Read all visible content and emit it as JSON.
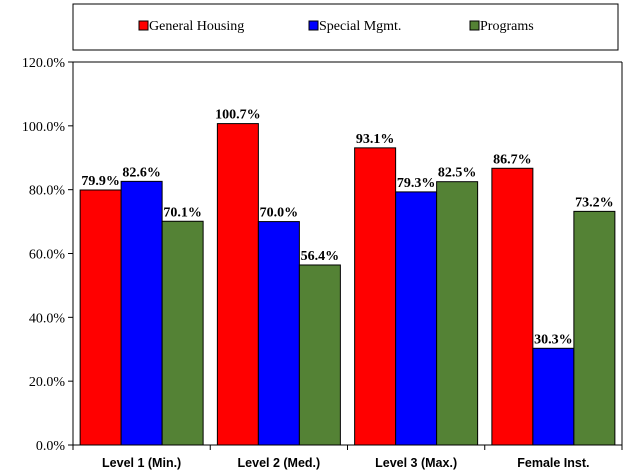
{
  "chart_data": {
    "type": "bar",
    "title": "",
    "xlabel": "",
    "ylabel": "",
    "categories": [
      "Level 1 (Min.)",
      "Level 2 (Med.)",
      "Level 3 (Max.)",
      "Female Inst."
    ],
    "series": [
      {
        "name": "General Housing",
        "color": "#ff0000",
        "values": [
          79.9,
          100.7,
          93.1,
          86.7
        ],
        "labels": [
          "79.9%",
          "100.7%",
          "93.1%",
          "86.7%"
        ]
      },
      {
        "name": "Special Mgmt.",
        "color": "#0000ff",
        "values": [
          82.6,
          70.0,
          79.3,
          30.3
        ],
        "labels": [
          "82.6%",
          "70.0%",
          "79.3%",
          "30.3%"
        ]
      },
      {
        "name": "Programs",
        "color": "#548235",
        "values": [
          70.1,
          56.4,
          82.5,
          73.2
        ],
        "labels": [
          "70.1%",
          "56.4%",
          "82.5%",
          "73.2%"
        ]
      }
    ],
    "ylim": [
      0,
      120
    ],
    "yticks": [
      0,
      20,
      40,
      60,
      80,
      100,
      120
    ],
    "ytick_labels": [
      "0.0%",
      "20.0%",
      "40.0%",
      "60.0%",
      "80.0%",
      "100.0%",
      "120.0%"
    ],
    "legend_position": "top",
    "grid": false
  }
}
